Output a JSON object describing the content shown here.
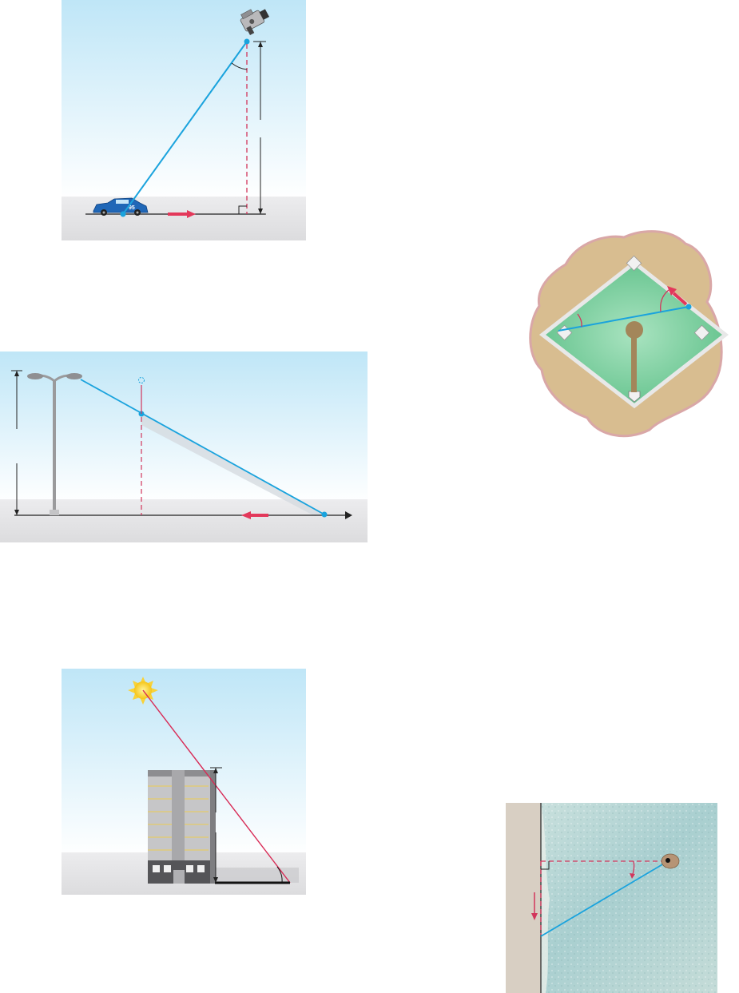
{
  "figures": [
    {
      "id": "race",
      "description_name": "camera-tracking-car"
    },
    {
      "id": "lamp",
      "description_name": "streetlight-shadow"
    },
    {
      "id": "baseball",
      "description_name": "baseball-diamond"
    },
    {
      "id": "sun",
      "description_name": "building-shadow"
    },
    {
      "id": "beach",
      "description_name": "lighthouse-beam-shore"
    }
  ],
  "colors": {
    "sky_top": "#bfe6f7",
    "sky_bottom": "#ffffff",
    "ground": "#e6e6e8",
    "line_blue": "#1aa3dd",
    "dashed_red": "#d2355b",
    "arrow_red": "#e3385a",
    "sun_ray": "#d82a55",
    "field_green": "#7fd0a2",
    "dirt": "#d8bd90"
  },
  "car": {
    "number": "95"
  }
}
